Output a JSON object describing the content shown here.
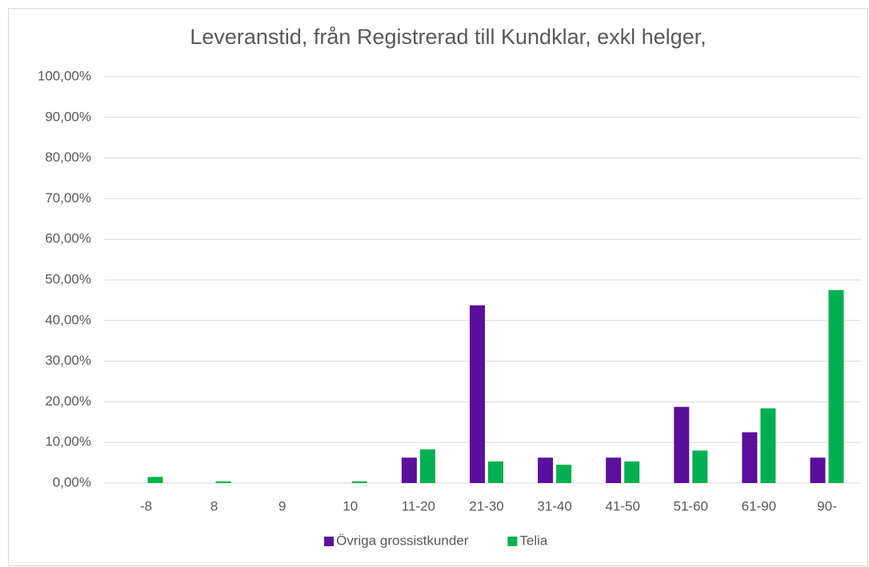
{
  "chart_data": {
    "type": "bar",
    "title": "Leveranstid, från Registrerad till Kundklar, exkl helger,",
    "categories": [
      "-8",
      "8",
      "9",
      "10",
      "11-20",
      "21-30",
      "31-40",
      "41-50",
      "51-60",
      "61-90",
      "90-"
    ],
    "series": [
      {
        "name": "Övriga grossistkunder",
        "color": "#5b0f9c",
        "values": [
          0,
          0,
          0,
          0,
          6.25,
          43.75,
          6.25,
          6.25,
          18.75,
          12.5,
          6.25
        ]
      },
      {
        "name": "Telia",
        "color": "#00b050",
        "values": [
          1.5,
          0.4,
          0,
          0.4,
          8.3,
          5.3,
          4.5,
          5.3,
          8.0,
          18.4,
          47.5
        ]
      }
    ],
    "ylim": [
      0,
      100
    ],
    "yticks": [
      {
        "value": 0,
        "label": "0,00%"
      },
      {
        "value": 10,
        "label": "10,00%"
      },
      {
        "value": 20,
        "label": "20,00%"
      },
      {
        "value": 30,
        "label": "30,00%"
      },
      {
        "value": 40,
        "label": "40,00%"
      },
      {
        "value": 50,
        "label": "50,00%"
      },
      {
        "value": 60,
        "label": "60,00%"
      },
      {
        "value": 70,
        "label": "70,00%"
      },
      {
        "value": 80,
        "label": "80,00%"
      },
      {
        "value": 90,
        "label": "90,00%"
      },
      {
        "value": 100,
        "label": "100,00%"
      }
    ],
    "grid": true,
    "legend": "bottom"
  }
}
